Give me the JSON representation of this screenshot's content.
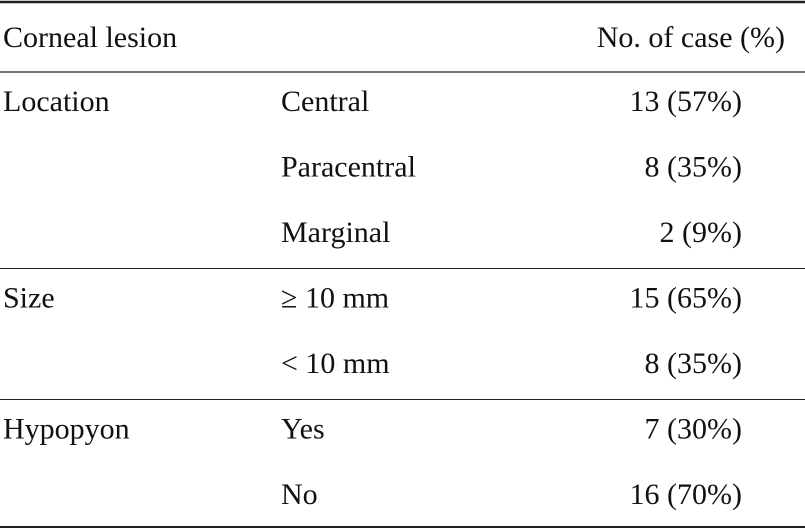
{
  "table": {
    "header": {
      "lesion": "Corneal lesion",
      "cases": "No. of case (%)"
    },
    "groups": [
      {
        "label": "Location",
        "rows": [
          [
            "Central",
            "13 (57%)"
          ],
          [
            "Paracentral",
            "8 (35%)"
          ],
          [
            "Marginal",
            "2 (9%)"
          ]
        ]
      },
      {
        "label": "Size",
        "rows": [
          [
            "≥ 10 mm",
            "15 (65%)"
          ],
          [
            "< 10 mm",
            "8 (35%)"
          ]
        ]
      },
      {
        "label": "Hypopyon",
        "rows": [
          [
            "Yes",
            "7 (30%)"
          ],
          [
            "No",
            "16 (70%)"
          ]
        ]
      }
    ]
  }
}
